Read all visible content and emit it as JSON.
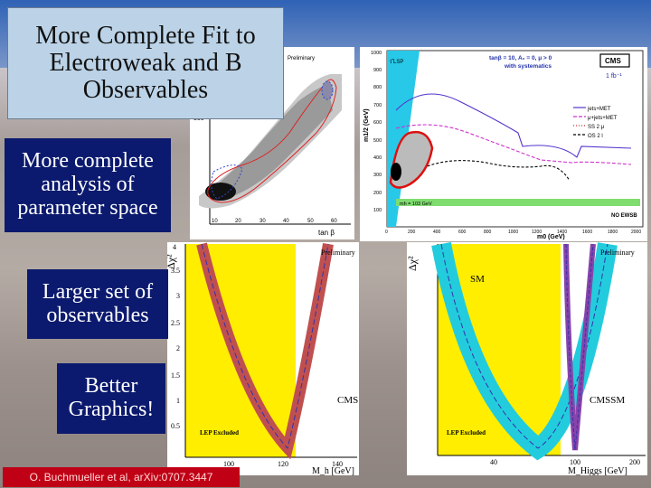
{
  "slide": {
    "title": "More Complete Fit to Electroweak and B Observables",
    "bullets": [
      "More complete analysis of parameter space",
      "Larger set of observables",
      "Better Graphics!"
    ],
    "credit": "O. Buchmueller et al, arXiv:0707.3447"
  },
  "plot_tanb": {
    "tag": "Preliminary",
    "xlabel": "tan β",
    "yticks": [
      "300"
    ],
    "xticks": [
      "10",
      "20",
      "30",
      "40",
      "50",
      "60"
    ]
  },
  "plot_cms": {
    "lsp_label": "τ̃ LSP",
    "params": "tanβ = 10, A₀ = 0, μ > 0",
    "params2": "with systematics",
    "badge": "CMS",
    "lumi": "1 fb⁻¹",
    "ylabel": "m1/2 (GeV)",
    "xlabel": "m0 (GeV)",
    "higgs_label": "mh = 103 GeV",
    "noewsb": "NO EWSB",
    "legend": [
      "jets+MET",
      "μ+jets+MET",
      "SS 2 μ",
      "OS 2 l"
    ],
    "yticks": [
      "1000",
      "900",
      "800",
      "700",
      "600",
      "500",
      "400",
      "300",
      "200",
      "100"
    ],
    "xticks": [
      "0",
      "200",
      "400",
      "600",
      "800",
      "1000",
      "1200",
      "1400",
      "1600",
      "1800",
      "2000"
    ]
  },
  "plot_mh": {
    "ylabel": "Δχ²",
    "tag": "Preliminary",
    "model": "CMSSM",
    "lep": "LEP Excluded",
    "xlabel": "M_h [GeV]",
    "xticks": [
      "100",
      "120",
      "140"
    ],
    "yticks": [
      "4",
      "3.5",
      "3",
      "2.5",
      "2",
      "1.5",
      "1",
      "0.5"
    ]
  },
  "plot_mhiggs": {
    "ylabel": "Δχ²",
    "tag": "Preliminary",
    "sm": "SM",
    "model": "CMSSM",
    "lep": "LEP Excluded",
    "xlabel": "M_Higgs [GeV]",
    "xticks": [
      "40",
      "100",
      "200"
    ],
    "yticks": [
      "4",
      "3.5",
      "3",
      "2.5",
      "2",
      "1.5",
      "1",
      "0.5"
    ]
  }
}
